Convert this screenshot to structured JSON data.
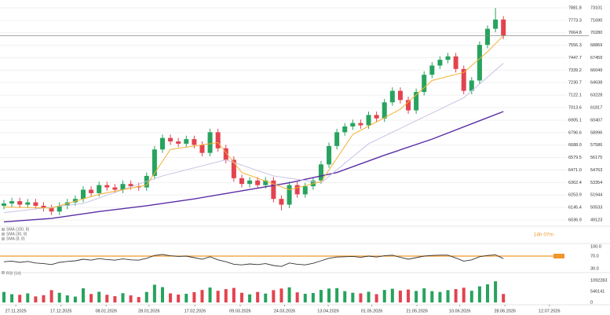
{
  "chart_data": {
    "type": "candlestick",
    "xlim": [
      -0.5,
      71
    ],
    "xticks": [
      {
        "value": 1.5,
        "label": "27.11.2025"
      },
      {
        "value": 7.2,
        "label": "17.12.2025"
      },
      {
        "value": 12.9,
        "label": "08.01.2026"
      },
      {
        "value": 18.3,
        "label": "28.01.2026"
      },
      {
        "value": 24.1,
        "label": "17.02.2026"
      },
      {
        "value": 29.8,
        "label": "09.03.2026"
      },
      {
        "value": 35.4,
        "label": "24.03.2026"
      },
      {
        "value": 40.9,
        "label": "13.04.2026"
      },
      {
        "value": 46.4,
        "label": "01.05.2026"
      },
      {
        "value": 52.1,
        "label": "21.05.2026"
      },
      {
        "value": 57.5,
        "label": "10.06.2026"
      },
      {
        "value": 63.2,
        "label": "28.06.2026"
      },
      {
        "value": 68.8,
        "label": "12.07.2026"
      }
    ],
    "ylim": [
      6036.9,
      7881.8
    ],
    "yticks": [
      7881.8,
      7773.3,
      7664.8,
      7556.3,
      7447.7,
      7339.2,
      7230.7,
      7122.1,
      7013.6,
      6905.1,
      6796.6,
      {
        "value": 6688.0,
        "label": "6688.0"
      },
      6579.5,
      {
        "value": 6471.0,
        "label": "6471.0"
      },
      6362.4,
      6253.9,
      6145.4,
      6036.9
    ],
    "y2lim": [
      49123,
      73101
    ],
    "y2ticks": [
      73101,
      71690,
      70280,
      68869,
      67459,
      66049,
      64638,
      63228,
      61817,
      60407,
      58996,
      57586,
      56175,
      54763,
      53354,
      51944,
      50533,
      49123
    ],
    "grid": true,
    "up_color": "#27a35e",
    "down_color": "#e3434f",
    "open": [
      6160,
      6180,
      6200,
      6170,
      6190,
      6160,
      6140,
      6110,
      6160,
      6190,
      6220,
      6300,
      6270,
      6340,
      6320,
      6300,
      6350,
      6330,
      6320,
      6420,
      6650,
      6750,
      6720,
      6700,
      6740,
      6690,
      6620,
      6800,
      6660,
      6560,
      6400,
      6350,
      6380,
      6340,
      6380,
      6220,
      6170,
      6340,
      6260,
      6330,
      6380,
      6520,
      6680,
      6800,
      6850,
      6880,
      6860,
      6950,
      6920,
      7060,
      7160,
      7080,
      6990,
      7150,
      7300,
      7380,
      7430,
      7460,
      7350,
      7160,
      7250,
      7560,
      7700,
      7780
    ],
    "high": [
      6210,
      6230,
      6230,
      6220,
      6220,
      6190,
      6170,
      6190,
      6220,
      6250,
      6330,
      6330,
      6370,
      6370,
      6350,
      6380,
      6380,
      6360,
      6450,
      6680,
      6780,
      6780,
      6750,
      6770,
      6770,
      6720,
      6830,
      6830,
      6690,
      6590,
      6430,
      6410,
      6410,
      6410,
      6410,
      6250,
      6370,
      6370,
      6360,
      6410,
      6550,
      6710,
      6830,
      6880,
      6910,
      6910,
      6980,
      6980,
      7090,
      7190,
      7190,
      7110,
      7180,
      7330,
      7410,
      7460,
      7490,
      7490,
      7380,
      7280,
      7590,
      7730,
      7880,
      7810
    ],
    "low": [
      6130,
      6150,
      6140,
      6140,
      6130,
      6110,
      6080,
      6080,
      6130,
      6160,
      6190,
      6240,
      6240,
      6290,
      6270,
      6270,
      6300,
      6290,
      6290,
      6390,
      6620,
      6690,
      6670,
      6670,
      6660,
      6590,
      6590,
      6630,
      6530,
      6370,
      6320,
      6320,
      6310,
      6310,
      6190,
      6120,
      6140,
      6230,
      6230,
      6300,
      6350,
      6490,
      6650,
      6770,
      6820,
      6830,
      6830,
      6890,
      6890,
      7030,
      7050,
      6960,
      6960,
      7120,
      7270,
      7350,
      7400,
      7320,
      7130,
      7130,
      7220,
      7530,
      7670,
      7610
    ],
    "close": [
      6180,
      6200,
      6170,
      6190,
      6160,
      6140,
      6110,
      6160,
      6190,
      6220,
      6300,
      6270,
      6340,
      6320,
      6300,
      6350,
      6330,
      6320,
      6420,
      6650,
      6750,
      6720,
      6700,
      6740,
      6690,
      6620,
      6800,
      6660,
      6560,
      6400,
      6350,
      6380,
      6340,
      6380,
      6220,
      6170,
      6340,
      6260,
      6330,
      6380,
      6520,
      6680,
      6800,
      6850,
      6880,
      6860,
      6950,
      6920,
      7060,
      7160,
      7080,
      6990,
      7150,
      7300,
      7380,
      7430,
      7460,
      7350,
      7160,
      7250,
      7560,
      7700,
      7780,
      7640
    ],
    "lines": [
      {
        "name": "SMA (100, 8)",
        "color": "#5a2ea6",
        "x": [
          0,
          6,
          12,
          18,
          24,
          30,
          36,
          42,
          48,
          54,
          60,
          63
        ],
        "values": [
          6020,
          6050,
          6110,
          6160,
          6220,
          6290,
          6360,
          6450,
          6600,
          6740,
          6900,
          6980
        ]
      },
      {
        "name": "SMA (30, 8)",
        "color": "#c9c2e6",
        "x": [
          0,
          10,
          20,
          28,
          34,
          40,
          46,
          52,
          58,
          63
        ],
        "values": [
          6100,
          6180,
          6420,
          6560,
          6420,
          6360,
          6700,
          6900,
          7100,
          7400
        ]
      },
      {
        "name": "SMA (8, 8)",
        "color": "#f2b233",
        "x": [
          0,
          6,
          12,
          18,
          21,
          27,
          30,
          36,
          40,
          44,
          50,
          54,
          58,
          61,
          63
        ],
        "values": [
          6150,
          6140,
          6260,
          6340,
          6650,
          6710,
          6450,
          6300,
          6370,
          6780,
          7000,
          7250,
          7320,
          7500,
          7640
        ]
      }
    ],
    "countdown": "14h 07m",
    "countdown_color": "#f0962a",
    "volume": [
      520000,
      410000,
      380000,
      450000,
      300000,
      360000,
      610000,
      480000,
      350000,
      290000,
      700000,
      420000,
      530000,
      380000,
      310000,
      460000,
      350000,
      270000,
      520000,
      880000,
      760000,
      450000,
      390000,
      430000,
      510000,
      620000,
      740000,
      580000,
      660000,
      720000,
      480000,
      400000,
      520000,
      440000,
      610000,
      690000,
      750000,
      500000,
      430000,
      470000,
      620000,
      690000,
      710000,
      560000,
      480000,
      450000,
      530000,
      410000,
      620000,
      680000,
      590000,
      640000,
      570000,
      700000,
      560000,
      520000,
      610000,
      660000,
      730000,
      580000,
      800000,
      900000,
      1050000,
      420000
    ],
    "volume_ylim": [
      0,
      1092283
    ],
    "volume_yticks": [
      1092283,
      546141,
      0
    ],
    "rsi": {
      "name": "RSI (14)",
      "color": "#333333",
      "values": [
        52,
        54,
        50,
        53,
        48,
        46,
        43,
        50,
        53,
        55,
        60,
        57,
        62,
        59,
        57,
        61,
        58,
        57,
        63,
        72,
        75,
        71,
        69,
        70,
        65,
        60,
        68,
        58,
        52,
        44,
        42,
        45,
        43,
        46,
        40,
        37,
        48,
        44,
        42,
        47,
        55,
        63,
        67,
        68,
        69,
        66,
        70,
        67,
        71,
        73,
        66,
        60,
        65,
        70,
        72,
        73,
        73,
        64,
        54,
        58,
        68,
        72,
        74,
        62
      ],
      "ylim": [
        25,
        100
      ],
      "yticks": [
        {
          "value": 100,
          "label": "100.0"
        },
        {
          "value": 70,
          "label": "70.0"
        },
        {
          "value": 30,
          "label": "30.0"
        }
      ],
      "level": 70,
      "level_color": "#f0962a"
    }
  }
}
